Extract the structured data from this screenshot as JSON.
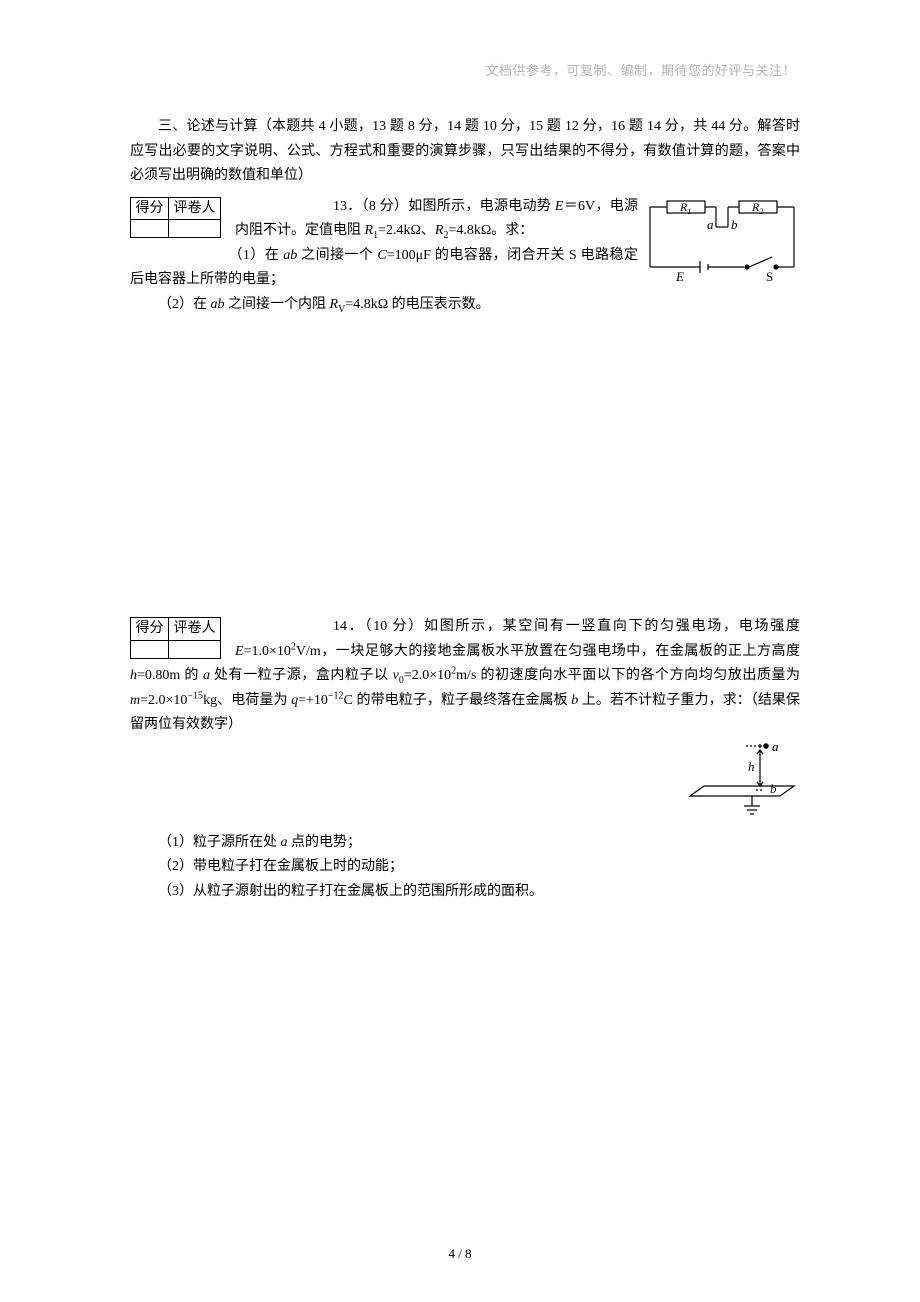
{
  "headerNote": "文档供参考，可复制、编制，期待您的好评与关注！",
  "scoreHeaders": {
    "col1": "得分",
    "col2": "评卷人"
  },
  "sectionIntro": "三、论述与计算（本题共 4 小题，13 题 8 分，14 题 10 分，15 题 12 分，16 题 14 分，共 44 分。解答时应写出必要的文字说明、公式、方程式和重要的演算步骤，只写出结果的不得分，有数值计算的题，答案中必须写出明确的数值和单位）",
  "p13": {
    "lead": "13．（8 分）如图所示，电源电动势 ",
    "eq1_html": "<span class=\"italic\">E</span>＝6V",
    "t1": "，电源内阻不计。定值电阻 ",
    "eq2_html": "<span class=\"italic\">R</span><sub>1</sub>=2.4kΩ、<span class=\"italic\">R</span><sub>2</sub>=4.8kΩ",
    "t2": "。求：",
    "sub1_a": "（1）在 ",
    "sub1_ab_html": "<span class=\"italic\">ab</span>",
    "sub1_b": " 之间接一个 ",
    "sub1_c_html": "<span class=\"italic\">C</span>=100μF",
    "sub1_d": " 的电容器，闭合开关 S 电路稳定后电容器上所带的电量；",
    "sub2_a": "（2）在 ",
    "sub2_b": " 之间接一个内阻 ",
    "sub2_c_html": "<span class=\"italic\">R</span><sub>V</sub>=4.8kΩ",
    "sub2_d": " 的电压表示数。"
  },
  "circuit": {
    "R1": "R",
    "R1sub": "1",
    "R2": "R",
    "R2sub": "2",
    "a": "a",
    "b": "b",
    "E": "E",
    "S": "S",
    "stroke": "#000000",
    "strokeWidth": 1.2,
    "fontSize": 13
  },
  "p14": {
    "lead": "14．（10 分）如图所示，某空间有一竖直向下的匀强电场，电场强度 ",
    "eq1_html": "<span class=\"italic\">E</span>=1.0×10<sup>2</sup>V/m",
    "t1": "，一块足够大的接地金属板水平放置在匀强电场中，在金属板的正上方高度 ",
    "eq2_html": "<span class=\"italic\">h</span>=0.80m",
    "t2": " 的 ",
    "a_html": "<span class=\"italic\">a</span>",
    "t3": " 处有一粒子源，盒内粒子以 ",
    "eq3_html": "<span class=\"italic\">v</span><sub>0</sub>=2.0×10<sup>2</sup>m/s",
    "t4": " 的初速度向水平面以下的各个方向均匀放出质量为 ",
    "eq4_html": "<span class=\"italic\">m</span>=2.0×10<sup>−15</sup>kg",
    "t5": "、电荷量为 ",
    "eq5_html": "<span class=\"italic\">q</span>=+10<sup>−12</sup>C",
    "t6": " 的带电粒子，粒子最终落在金属板 ",
    "b_html": "<span class=\"italic\">b</span>",
    "t7": " 上。若不计粒子重力，求：（结果保留两位有效数字）",
    "sub1": "（1）粒子源所在处 ",
    "sub1b": " 点的电势；",
    "sub2": "（2）带电粒子打在金属板上时的动能；",
    "sub3": "（3）从粒子源射出的粒子打在金属板上的范围所形成的面积。"
  },
  "efield": {
    "a": "a",
    "b": "b",
    "h": "h",
    "stroke": "#000000",
    "fontSize": 13
  },
  "footer": {
    "text": "4 / 8"
  }
}
